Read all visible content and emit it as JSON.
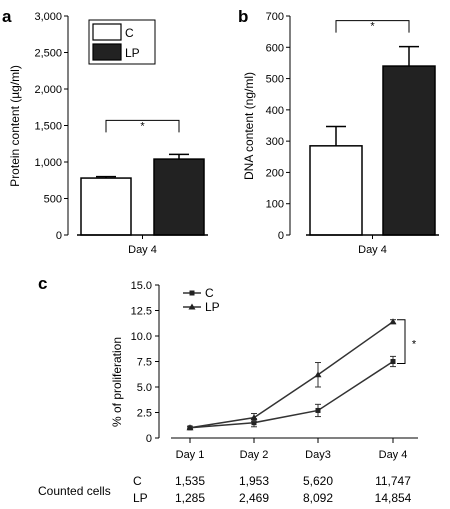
{
  "chart_data": [
    {
      "panel": "a",
      "type": "bar",
      "categories": [
        "Day 4"
      ],
      "series": [
        {
          "name": "C",
          "values": [
            780
          ],
          "errors": [
            20
          ],
          "color": "#ffffff"
        },
        {
          "name": "LP",
          "values": [
            1040
          ],
          "errors": [
            65
          ],
          "color": "#222222"
        }
      ],
      "ylabel": "Protein content (µg/ml)",
      "ylim": [
        0,
        3000
      ],
      "yticks": [
        "0",
        "500",
        "1,000",
        "1,500",
        "2,000",
        "2,500",
        "3,000"
      ],
      "ytick_values": [
        0,
        500,
        1000,
        1500,
        2000,
        2500,
        3000
      ],
      "significance": "*",
      "legend_position": "top-left"
    },
    {
      "panel": "b",
      "type": "bar",
      "categories": [
        "Day 4"
      ],
      "series": [
        {
          "name": "C",
          "values": [
            285
          ],
          "errors": [
            62
          ],
          "color": "#ffffff"
        },
        {
          "name": "LP",
          "values": [
            540
          ],
          "errors": [
            62
          ],
          "color": "#222222"
        }
      ],
      "ylabel": "DNA content (ng/ml)",
      "ylim": [
        0,
        700
      ],
      "yticks": [
        "0",
        "100",
        "200",
        "300",
        "400",
        "500",
        "600",
        "700"
      ],
      "ytick_values": [
        0,
        100,
        200,
        300,
        400,
        500,
        600,
        700
      ],
      "significance": "*"
    },
    {
      "panel": "c",
      "type": "line",
      "categories": [
        "Day 1",
        "Day 2",
        "Day3",
        "Day 4"
      ],
      "series": [
        {
          "name": "C",
          "marker": "square",
          "values": [
            1.0,
            1.5,
            2.7,
            7.5
          ],
          "errors": [
            0.1,
            0.4,
            0.6,
            0.5
          ]
        },
        {
          "name": "LP",
          "marker": "triangle",
          "values": [
            1.0,
            2.0,
            6.2,
            11.4
          ],
          "errors": [
            0.1,
            0.4,
            1.2,
            0.2
          ]
        }
      ],
      "ylabel": "% of proliferation",
      "ylim": [
        0,
        15
      ],
      "yticks": [
        "0",
        "2.5",
        "5.0",
        "7.5",
        "10.0",
        "12.5",
        "15.0"
      ],
      "ytick_values": [
        0,
        2.5,
        5,
        7.5,
        10,
        12.5,
        15
      ],
      "significance": "*",
      "legend_position": "top-left",
      "table": {
        "title": "Counted cells",
        "rows": [
          {
            "label": "C",
            "values": [
              "1,535",
              "1,953",
              "5,620",
              "11,747"
            ]
          },
          {
            "label": "LP",
            "values": [
              "1,285",
              "2,469",
              "8,092",
              "14,854"
            ]
          }
        ]
      }
    }
  ]
}
